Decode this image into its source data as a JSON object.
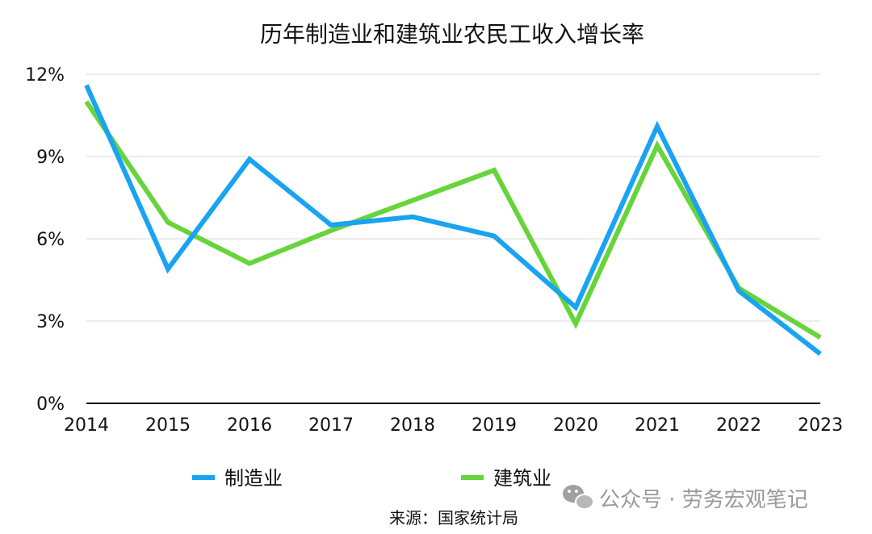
{
  "chart_data": {
    "type": "line",
    "title": "历年制造业和建筑业农民工收入增长率",
    "categories": [
      "2014",
      "2015",
      "2016",
      "2017",
      "2018",
      "2019",
      "2020",
      "2021",
      "2022",
      "2023"
    ],
    "series": [
      {
        "name": "制造业",
        "color": "#1aa3f0",
        "values": [
          11.6,
          4.9,
          8.9,
          6.5,
          6.8,
          6.1,
          3.5,
          10.1,
          4.1,
          1.8
        ]
      },
      {
        "name": "建筑业",
        "color": "#66d43a",
        "values": [
          11.0,
          6.6,
          5.1,
          6.3,
          7.4,
          8.5,
          2.9,
          9.4,
          4.2,
          2.4
        ]
      }
    ],
    "ylim": [
      0,
      12
    ],
    "yticks": [
      0,
      3,
      6,
      9,
      12
    ],
    "ytick_labels": [
      "0%",
      "3%",
      "6%",
      "9%",
      "12%"
    ],
    "grid": true,
    "legend_position": "bottom"
  },
  "footer": {
    "source": "来源：国家统计局",
    "watermark": "公众号 · 劳务宏观笔记",
    "watermark_icon": "wechat-icon"
  }
}
